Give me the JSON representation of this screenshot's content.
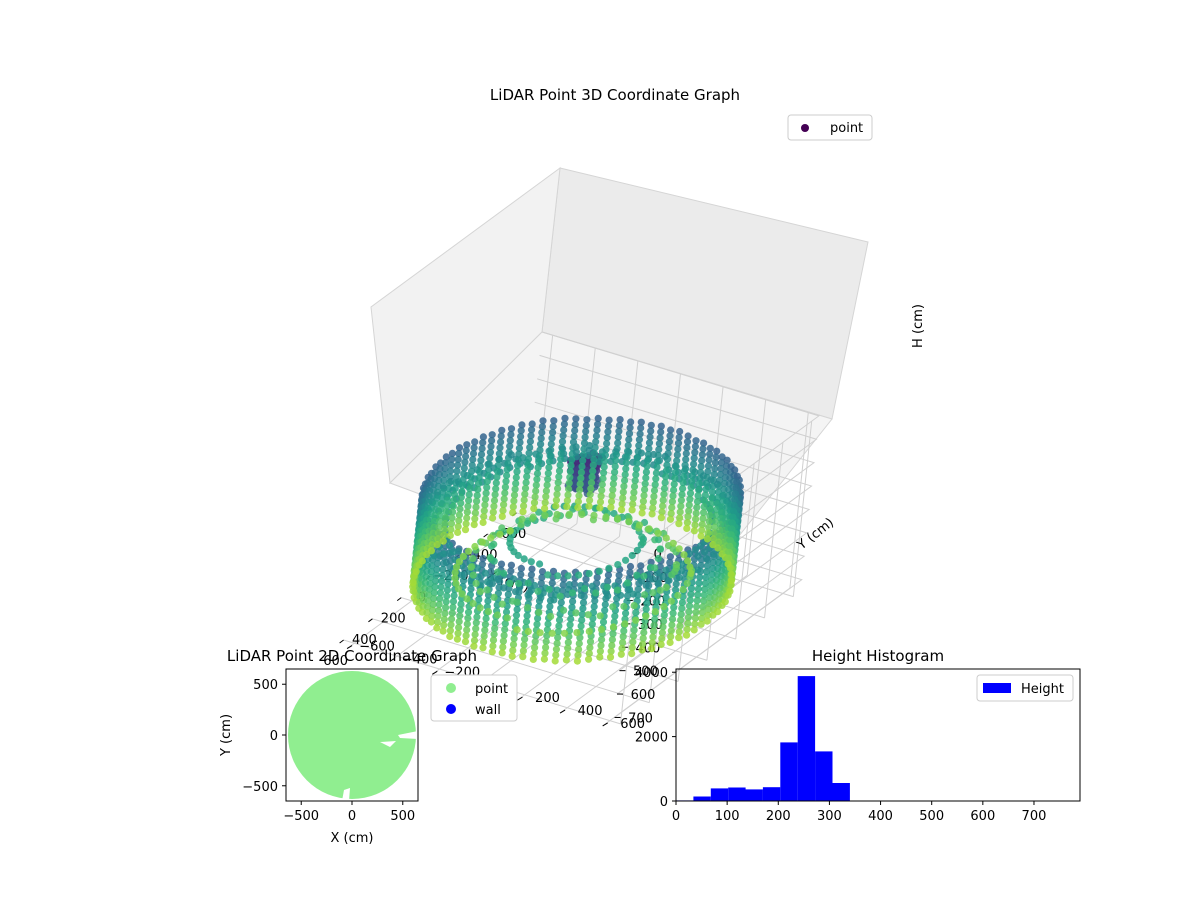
{
  "chart_data": [
    {
      "type": "scatter",
      "projection": "3d",
      "title": "LiDAR Point 3D Coordinate Graph",
      "xlabel": "X (cm)",
      "ylabel": "Y (cm)",
      "zlabel": "H (cm)",
      "xlim": [
        -650,
        650
      ],
      "ylim": [
        -650,
        650
      ],
      "zlim": [
        750,
        0
      ],
      "z_inverted": true,
      "xticks": [
        "−600",
        "−400",
        "−200",
        "0",
        "200",
        "400",
        "600"
      ],
      "yticks": [
        "−600",
        "−400",
        "−200",
        "0",
        "200",
        "400",
        "600"
      ],
      "zticks": [
        "0",
        "100",
        "200",
        "300",
        "400",
        "500",
        "600",
        "700"
      ],
      "colormap": "viridis",
      "legend": {
        "placement": "top-right",
        "entries": [
          {
            "label": "point",
            "color": "#440154"
          }
        ]
      },
      "grid": true,
      "structure": {
        "outer_wall": {
          "radius_cm": 620,
          "h_top": 220,
          "h_bottom": 600
        },
        "inner_rings_radius_cm": [
          260,
          330,
          400,
          460
        ],
        "inner_rings_h": [
          420,
          470,
          520,
          560
        ],
        "center_cluster": {
          "radius_cm": 60,
          "h_top": 60,
          "h_bottom": 200
        },
        "isolated_point": {
          "x": -30,
          "y": 60,
          "h": 60
        }
      }
    },
    {
      "type": "scatter",
      "title": "LiDAR Point 2D Coordinate Graph",
      "xlabel": "X (cm)",
      "ylabel": "Y (cm)",
      "xlim": [
        -650,
        650
      ],
      "ylim": [
        -650,
        650
      ],
      "xticks": [
        -500,
        0,
        500
      ],
      "yticks": [
        -500,
        0,
        500
      ],
      "legend": {
        "placement": "outside-right",
        "entries": [
          {
            "label": "point",
            "color": "#90ee90"
          },
          {
            "label": "wall",
            "color": "#0000ff"
          }
        ]
      },
      "disk": {
        "center": [
          0,
          0
        ],
        "radius_cm": 630,
        "color": "#90ee90"
      }
    },
    {
      "type": "bar",
      "title": "Height Histogram",
      "xlabel": "",
      "ylabel": "",
      "xlim": [
        0,
        790
      ],
      "ylim": [
        0,
        4100
      ],
      "xticks": [
        0,
        100,
        200,
        300,
        400,
        500,
        600,
        700
      ],
      "yticks": [
        0,
        2000,
        4000
      ],
      "bar_color": "#0000ff",
      "bins": [
        {
          "x0": 0,
          "x1": 34,
          "count": 20
        },
        {
          "x0": 34,
          "x1": 68,
          "count": 140
        },
        {
          "x0": 68,
          "x1": 102,
          "count": 390
        },
        {
          "x0": 102,
          "x1": 136,
          "count": 420
        },
        {
          "x0": 136,
          "x1": 170,
          "count": 360
        },
        {
          "x0": 170,
          "x1": 204,
          "count": 430
        },
        {
          "x0": 204,
          "x1": 238,
          "count": 1820
        },
        {
          "x0": 238,
          "x1": 272,
          "count": 3880
        },
        {
          "x0": 272,
          "x1": 306,
          "count": 1540
        },
        {
          "x0": 306,
          "x1": 340,
          "count": 560
        }
      ],
      "legend": {
        "placement": "top-right",
        "entries": [
          {
            "label": "Height",
            "color": "#0000ff"
          }
        ]
      }
    }
  ]
}
